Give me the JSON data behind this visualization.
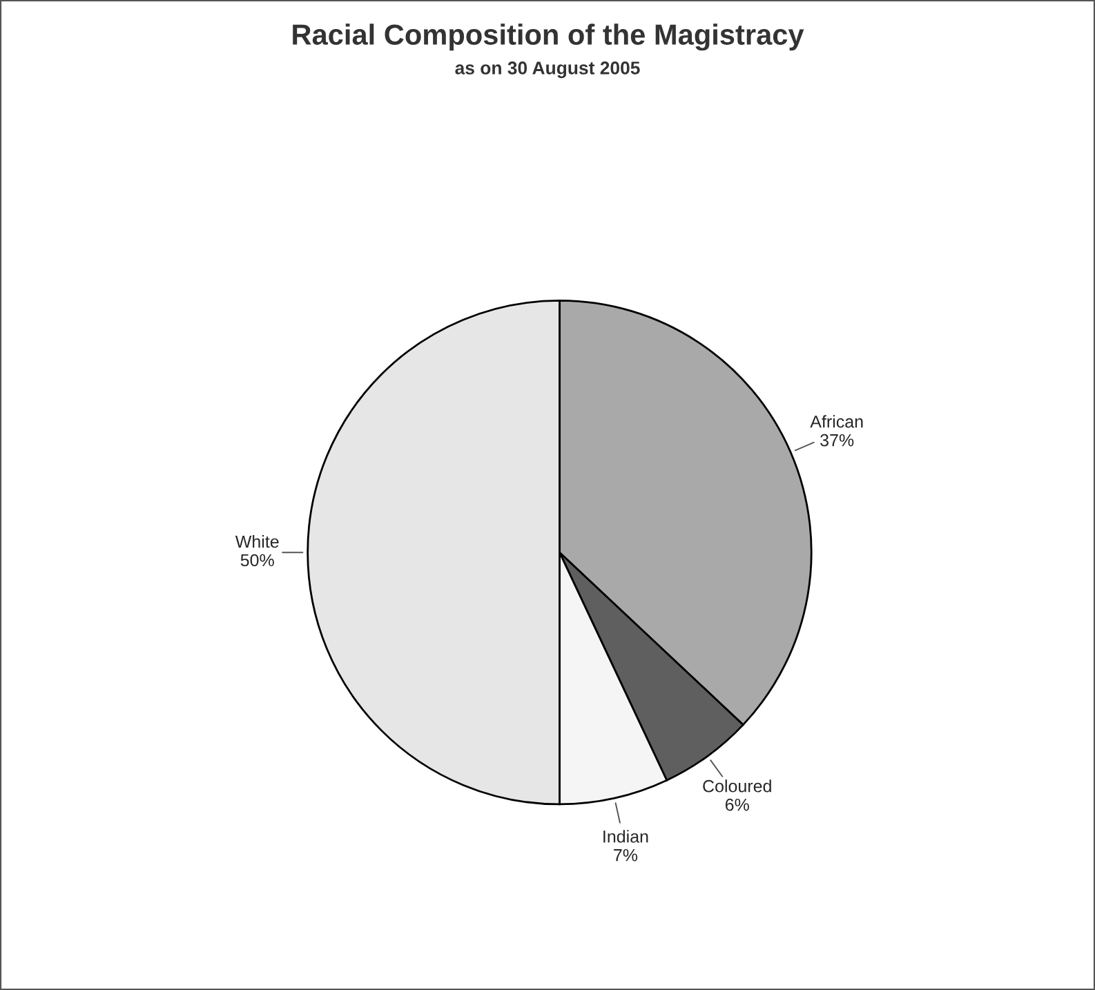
{
  "chart_data": {
    "type": "pie",
    "title": "Racial Composition of the Magistracy",
    "subtitle": "as on 30 August 2005",
    "categories": [
      "African",
      "Coloured",
      "Indian",
      "White"
    ],
    "values": [
      37,
      6,
      7,
      50
    ],
    "value_labels": [
      "37%",
      "6%",
      "7%",
      "50%"
    ],
    "colors": [
      "#a9a9a9",
      "#5f5f5f",
      "#f5f5f5",
      "#e6e6e6"
    ],
    "legend": false
  }
}
